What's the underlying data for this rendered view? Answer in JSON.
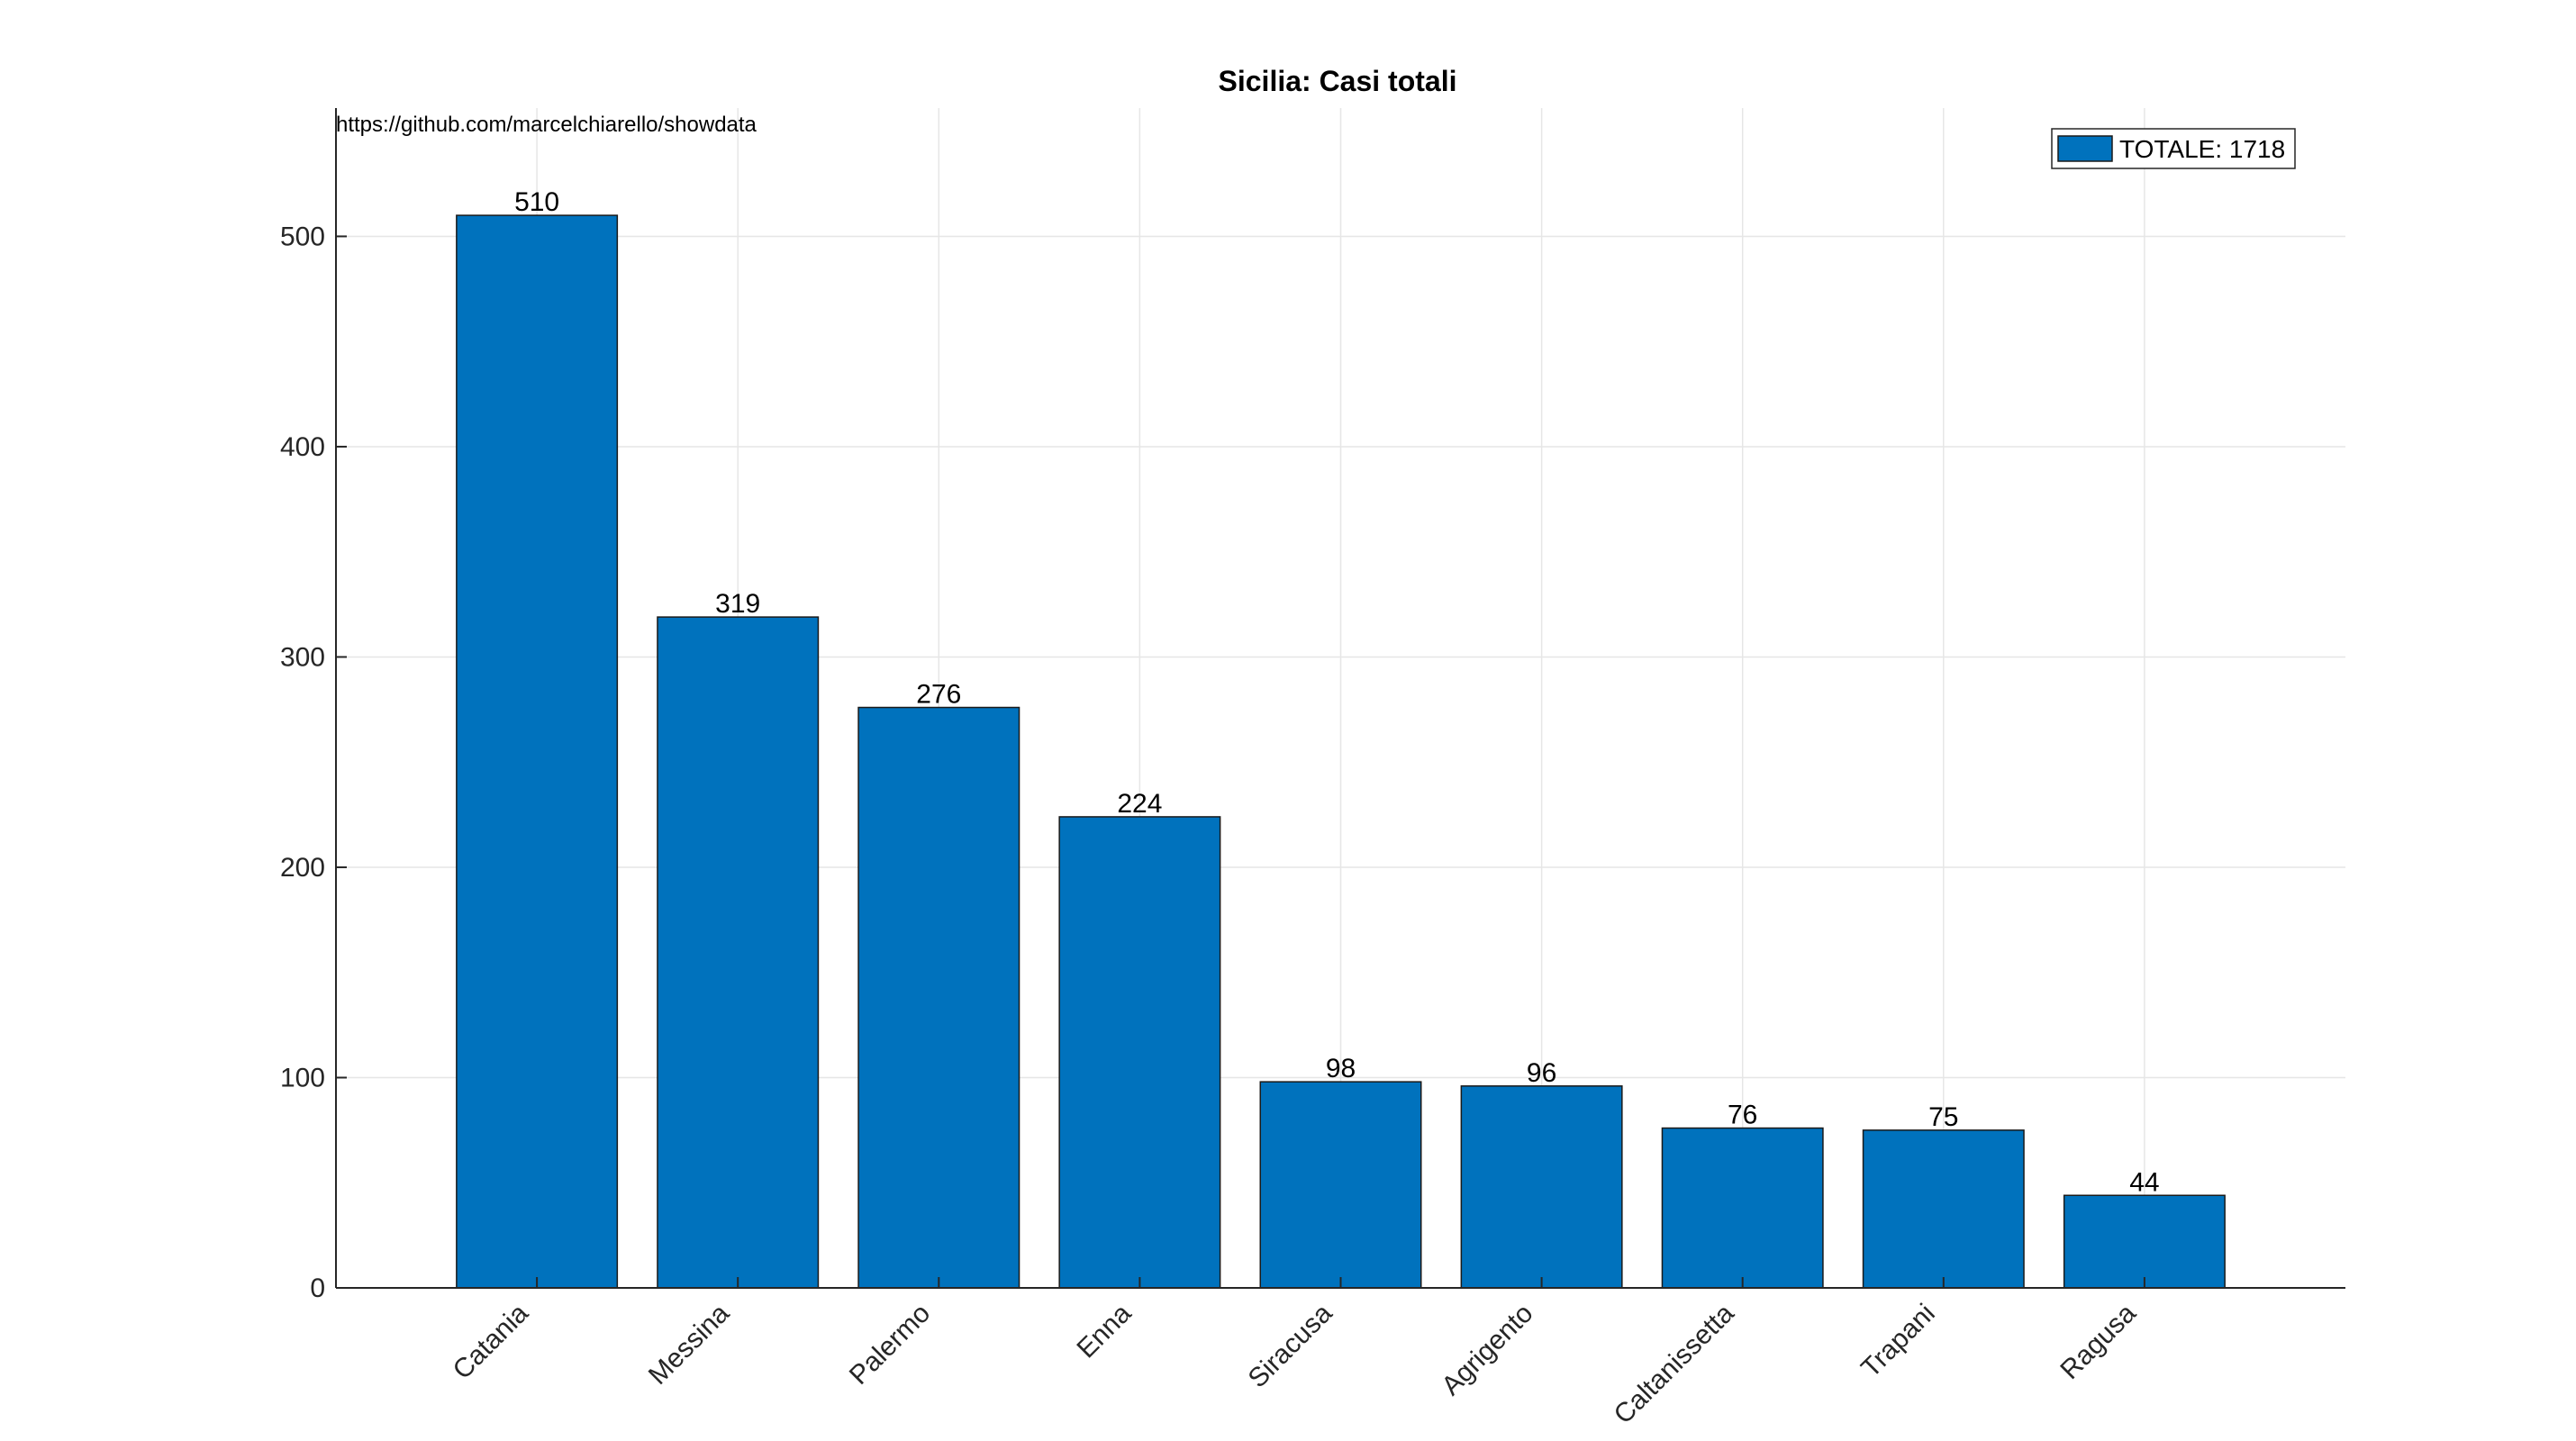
{
  "source_note": "https://github.com/marcelchiarello/showdata",
  "colors": {
    "bar": "#0072BD",
    "grid": "#e6e6e6",
    "axis": "#262626"
  },
  "chart_data": {
    "type": "bar",
    "title": "Sicilia: Casi totali",
    "categories": [
      "Catania",
      "Messina",
      "Palermo",
      "Enna",
      "Siracusa",
      "Agrigento",
      "Caltanissetta",
      "Trapani",
      "Ragusa"
    ],
    "series": [
      {
        "name": "TOTALE: 1718",
        "values": [
          510,
          319,
          276,
          224,
          98,
          96,
          76,
          75,
          44
        ]
      }
    ],
    "data_labels": [
      "510",
      "319",
      "276",
      "224",
      "98",
      "96",
      "76",
      "75",
      "44"
    ],
    "y_ticks": [
      0,
      100,
      200,
      300,
      400,
      500
    ],
    "ylim": [
      0,
      561
    ],
    "xlabel": "",
    "ylabel": "",
    "grid": true,
    "legend_position": "top-right"
  }
}
